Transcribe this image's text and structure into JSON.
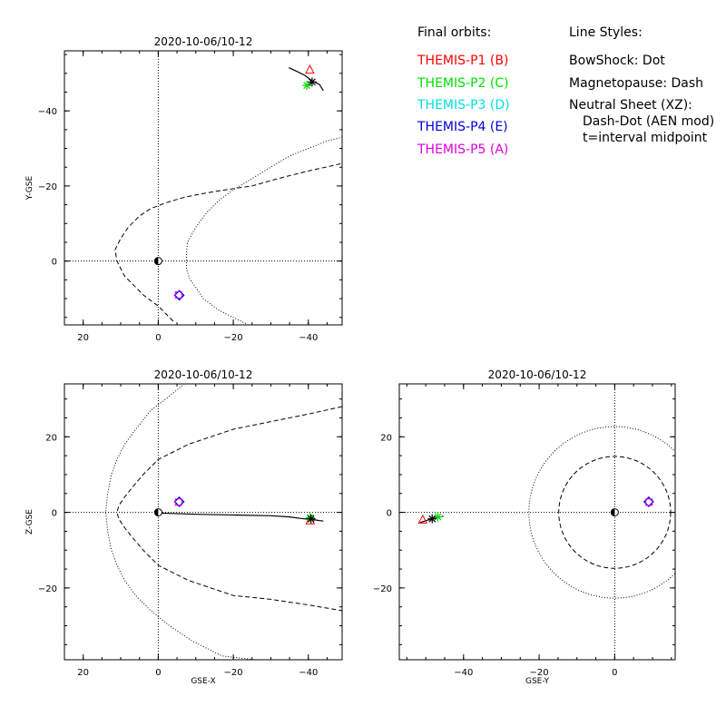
{
  "legend": {
    "orbits_title": "Final orbits:",
    "orbits": [
      {
        "label": "THEMIS-P1 (B)",
        "color": "#ff0000"
      },
      {
        "label": "THEMIS-P2 (C)",
        "color": "#00e000"
      },
      {
        "label": "THEMIS-P3 (D)",
        "color": "#00e0e0"
      },
      {
        "label": "THEMIS-P4 (E)",
        "color": "#0000e0"
      },
      {
        "label": "THEMIS-P5 (A)",
        "color": "#e000e0"
      }
    ],
    "styles_title": "Line Styles:",
    "styles": [
      "BowShock: Dot",
      "Magnetopause: Dash",
      "Neutral Sheet (XZ):",
      "Dash-Dot (AEN mod)",
      "t=interval midpoint"
    ]
  },
  "chart_data": [
    {
      "type": "scatter",
      "panel": "xy",
      "title": "2020-10-06/10-12",
      "xlabel": "",
      "ylabel": "Y-GSE",
      "xlim": [
        25,
        -49
      ],
      "ylim": [
        17,
        -56
      ],
      "x_ticks": [
        20,
        0,
        -20,
        -40
      ],
      "y_ticks": [
        -40,
        -20,
        0
      ],
      "zero_lines": true,
      "bow_shock": [
        [
          -24,
          17
        ],
        [
          -16,
          13
        ],
        [
          -12,
          10
        ],
        [
          -10,
          7
        ],
        [
          -8.5,
          5
        ],
        [
          -7.5,
          2
        ],
        [
          -7.5,
          -2
        ],
        [
          -7.8,
          -5
        ],
        [
          -10,
          -9
        ],
        [
          -13,
          -13
        ],
        [
          -16,
          -16
        ],
        [
          -20,
          -19
        ],
        [
          -25,
          -22
        ],
        [
          -30,
          -25
        ],
        [
          -35,
          -28
        ],
        [
          -40,
          -30
        ],
        [
          -45,
          -32
        ],
        [
          -49,
          -33
        ]
      ],
      "magnetopause": [
        [
          -4,
          16
        ],
        [
          -2,
          14
        ],
        [
          0,
          12
        ],
        [
          4,
          9
        ],
        [
          6,
          7
        ],
        [
          9,
          4
        ],
        [
          10,
          2
        ],
        [
          11,
          0
        ],
        [
          11.5,
          -3
        ],
        [
          10,
          -6
        ],
        [
          8,
          -9
        ],
        [
          5,
          -12
        ],
        [
          2,
          -14
        ],
        [
          -2,
          -15.5
        ],
        [
          -7,
          -17
        ],
        [
          -12,
          -18
        ],
        [
          -18,
          -19
        ],
        [
          -25,
          -20
        ],
        [
          -32,
          -22
        ],
        [
          -40,
          -24
        ],
        [
          -49,
          -26
        ]
      ],
      "earth": {
        "x": 0,
        "y": 0
      },
      "traces": [
        {
          "name": "tail-cluster",
          "points": [
            [
              -34.8,
              -51.5
            ],
            [
              -37,
              -50.5
            ],
            [
              -39,
              -49.5
            ],
            [
              -41,
              -48
            ],
            [
              -43,
              -47.0
            ],
            [
              -44,
              -45.4
            ]
          ]
        }
      ],
      "markers": [
        {
          "probe": "P1",
          "symbol": "triangle",
          "color": "#ff0000",
          "x": -40.4,
          "y": -50.9
        },
        {
          "probe": "P2",
          "symbol": "asterisk",
          "color": "#00e000",
          "x": -39.6,
          "y": -46.8
        },
        {
          "probe": "P3",
          "symbol": "diamond",
          "color": "#00e0e0",
          "x": -5.6,
          "y": 9.1
        },
        {
          "probe": "P4",
          "symbol": "diamond",
          "color": "#0000e0",
          "x": -5.6,
          "y": 9.1
        },
        {
          "probe": "P5",
          "symbol": "square",
          "color": "#e000e0",
          "x": -5.4,
          "y": 9.0
        },
        {
          "probe": "all",
          "symbol": "asterisk",
          "color": "#000000",
          "x": -41,
          "y": -47.7
        }
      ]
    },
    {
      "type": "scatter",
      "panel": "xz",
      "title": "2020-10-06/10-12",
      "xlabel": "GSE-X",
      "ylabel": "Z-GSE",
      "xlim": [
        25,
        -49
      ],
      "ylim": [
        -39,
        34
      ],
      "x_ticks": [
        20,
        0,
        -20,
        -40
      ],
      "y_ticks": [
        20,
        0,
        -20
      ],
      "zero_lines": true,
      "bow_shock": [
        [
          -7,
          34
        ],
        [
          -2,
          30
        ],
        [
          2,
          27
        ],
        [
          6,
          22
        ],
        [
          9,
          18
        ],
        [
          11,
          14
        ],
        [
          12.5,
          10
        ],
        [
          13.5,
          5
        ],
        [
          14,
          0
        ],
        [
          13.5,
          -5
        ],
        [
          12.5,
          -10
        ],
        [
          11,
          -14
        ],
        [
          9,
          -18
        ],
        [
          6,
          -22
        ],
        [
          2,
          -26
        ],
        [
          -3,
          -30
        ],
        [
          -9,
          -34
        ],
        [
          -17,
          -38
        ],
        [
          -26,
          -39
        ]
      ],
      "magnetopause": [
        [
          -49,
          28
        ],
        [
          -40,
          26
        ],
        [
          -30,
          24
        ],
        [
          -20,
          22
        ],
        [
          -14,
          20
        ],
        [
          -8,
          18
        ],
        [
          -4,
          16
        ],
        [
          0,
          14
        ],
        [
          4,
          10
        ],
        [
          7,
          6.5
        ],
        [
          9,
          4
        ],
        [
          10.5,
          1.8
        ],
        [
          11,
          0
        ],
        [
          10.5,
          -1.8
        ],
        [
          9,
          -4
        ],
        [
          7,
          -6.5
        ],
        [
          4,
          -10
        ],
        [
          0,
          -14
        ],
        [
          -4,
          -16
        ],
        [
          -8,
          -18
        ],
        [
          -14,
          -20
        ],
        [
          -20,
          -22
        ],
        [
          -30,
          -23
        ],
        [
          -40,
          -24.5
        ],
        [
          -49,
          -26
        ]
      ],
      "earth": {
        "x": 0,
        "y": 0
      },
      "traces": [
        {
          "name": "tail-cluster",
          "points": [
            [
              0.1,
              -0.2
            ],
            [
              -4,
              -0.3
            ],
            [
              -10,
              -0.5
            ],
            [
              -20,
              -0.7
            ],
            [
              -30,
              -0.9
            ],
            [
              -35,
              -1.2
            ],
            [
              -38,
              -1.6
            ],
            [
              -41,
              -1.9
            ],
            [
              -44,
              -2.3
            ]
          ]
        }
      ],
      "markers": [
        {
          "probe": "P1",
          "symbol": "triangle",
          "color": "#ff0000",
          "x": -40.5,
          "y": -2.2
        },
        {
          "probe": "P2",
          "symbol": "asterisk",
          "color": "#00e000",
          "x": -40.5,
          "y": -1.4
        },
        {
          "probe": "P3",
          "symbol": "diamond",
          "color": "#00e0e0",
          "x": -5.6,
          "y": 2.8
        },
        {
          "probe": "P4",
          "symbol": "diamond",
          "color": "#0000e0",
          "x": -5.6,
          "y": 2.8
        },
        {
          "probe": "P5",
          "symbol": "square",
          "color": "#e000e0",
          "x": -5.4,
          "y": 2.7
        },
        {
          "probe": "all",
          "symbol": "asterisk",
          "color": "#000000",
          "x": -40.7,
          "y": -1.7
        }
      ]
    },
    {
      "type": "scatter",
      "panel": "yz",
      "title": "2020-10-06/10-12",
      "xlabel": "GSE-Y",
      "ylabel": "",
      "xlim": [
        -57,
        16
      ],
      "ylim": [
        -39,
        34
      ],
      "x_ticks": [
        -40,
        -20,
        0
      ],
      "y_ticks": [
        20,
        0,
        -20
      ],
      "zero_lines": true,
      "bow_shock_circle": {
        "cx": 0,
        "cy": 0,
        "r": 22.7
      },
      "magnetopause_circle": {
        "cx": 0,
        "cy": 0,
        "r": 14.8
      },
      "earth": {
        "x": 0,
        "y": 0
      },
      "traces": [
        {
          "name": "tail-cluster",
          "points": [
            [
              -51.5,
              -2.7
            ],
            [
              -50,
              -2.2
            ],
            [
              -48.6,
              -1.8
            ],
            [
              -47,
              -1.4
            ],
            [
              -45.3,
              -1.0
            ]
          ]
        }
      ],
      "markers": [
        {
          "probe": "P1",
          "symbol": "triangle",
          "color": "#ff0000",
          "x": -50.8,
          "y": -2.0
        },
        {
          "probe": "P2",
          "symbol": "asterisk",
          "color": "#00e000",
          "x": -46.8,
          "y": -1.2
        },
        {
          "probe": "P3",
          "symbol": "diamond",
          "color": "#00e0e0",
          "x": 9.0,
          "y": 2.8
        },
        {
          "probe": "P4",
          "symbol": "diamond",
          "color": "#0000e0",
          "x": 9.0,
          "y": 2.8
        },
        {
          "probe": "P5",
          "symbol": "square",
          "color": "#e000e0",
          "x": 9.1,
          "y": 2.7
        },
        {
          "probe": "all",
          "symbol": "asterisk",
          "color": "#000000",
          "x": -48.3,
          "y": -1.7
        }
      ]
    }
  ]
}
